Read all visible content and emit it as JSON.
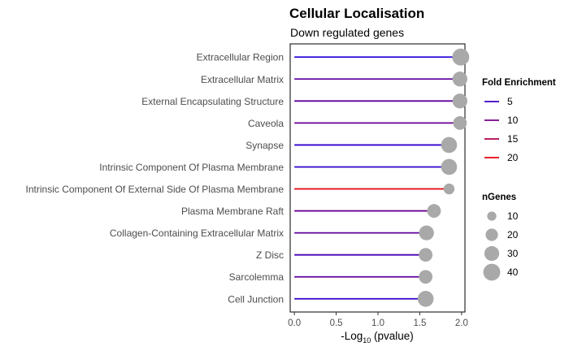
{
  "chart_data": {
    "type": "lollipop",
    "title": "Cellular Localisation",
    "subtitle": "Down regulated genes",
    "xlabel_prefix": "-Log",
    "xlabel_sub": "10",
    "xlabel_suffix": " (pvalue)",
    "xlim": [
      -0.05,
      2.04
    ],
    "x_ticks": [
      0.0,
      0.5,
      1.0,
      1.5,
      2.0
    ],
    "x_tick_labels": [
      "0.0",
      "0.5",
      "1.0",
      "1.5",
      "2.0"
    ],
    "grid": false,
    "categories": [
      "Extracellular Region",
      "Extracellular Matrix",
      "External Encapsulating Structure",
      "Caveola",
      "Synapse",
      "Intrinsic Component Of Plasma Membrane",
      "Intrinsic Component Of External Side Of Plasma Membrane",
      "Plasma Membrane Raft",
      "Collagen-Containing Extracellular Matrix",
      "Z Disc",
      "Sarcolemma",
      "Cell Junction"
    ],
    "values": [
      1.99,
      1.98,
      1.98,
      1.98,
      1.85,
      1.85,
      1.85,
      1.67,
      1.58,
      1.57,
      1.57,
      1.57
    ],
    "fold_enrichment": [
      3,
      8,
      8,
      9,
      4,
      4,
      20,
      9,
      8,
      6,
      8,
      4
    ],
    "n_genes": [
      40,
      30,
      30,
      25,
      35,
      35,
      15,
      25,
      30,
      25,
      25,
      35
    ],
    "colors": {
      "point": "#a9a9a9",
      "fe_low": "#1a00e6",
      "fe_high": "#e6000e",
      "frame": "#000000"
    },
    "legend": {
      "color_title": "Fold Enrichment",
      "color_values": [
        5,
        10,
        15,
        20
      ],
      "color_labels": [
        "5",
        "10",
        "15",
        "20"
      ],
      "size_title": "nGenes",
      "size_values": [
        10,
        20,
        30,
        40
      ],
      "size_labels": [
        "10",
        "20",
        "30",
        "40"
      ],
      "placement": "right"
    }
  }
}
